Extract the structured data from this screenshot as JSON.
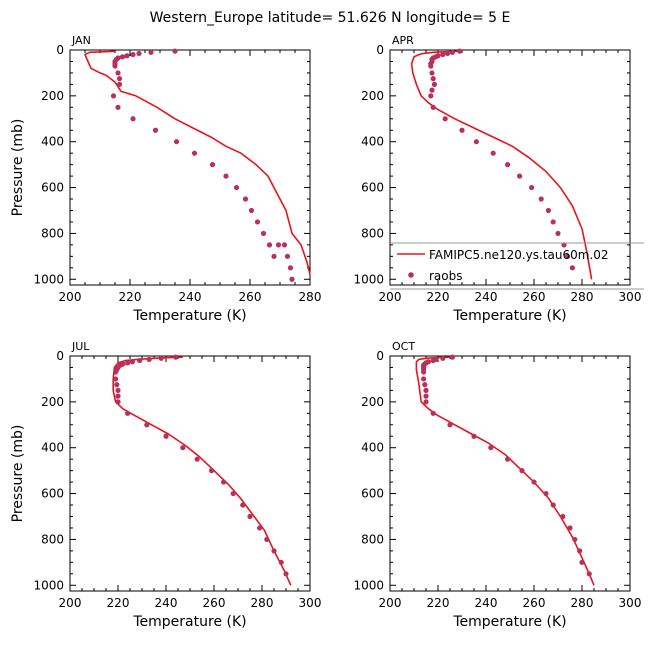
{
  "title": "Western_Europe  latitude= 51.626 N longitude= 5 E",
  "colors": {
    "model": "#e8141b",
    "obs": "#b8315e",
    "axis": "#000000",
    "legend_frame": "#999999"
  },
  "legend": {
    "model_label": "FAMIPC5.ne120.ys.tau60m.02",
    "obs_label": "raobs"
  },
  "chart_data": [
    {
      "type": "line",
      "panel": "JAN",
      "xlabel": "Temperature (K)",
      "ylabel": "Pressure (mb)",
      "xlim": [
        200,
        280
      ],
      "ylim": [
        1025,
        0
      ],
      "xticks": [
        200,
        220,
        240,
        260,
        280
      ],
      "yticks": [
        0,
        200,
        400,
        600,
        800,
        1000
      ],
      "series": [
        {
          "kind": "line",
          "x": [
            215,
            213,
            206.5,
            205,
            206,
            207,
            210,
            212,
            215,
            217,
            222,
            229,
            235,
            241,
            247,
            252,
            257,
            262,
            266,
            268,
            270,
            272,
            274,
            277,
            279,
            280
          ],
          "y": [
            5,
            7,
            10,
            20,
            50,
            80,
            100,
            110,
            140,
            180,
            200,
            250,
            300,
            340,
            380,
            420,
            450,
            500,
            550,
            600,
            650,
            700,
            800,
            850,
            925,
            980
          ]
        },
        {
          "kind": "scatter",
          "x": [
            235,
            227,
            223,
            221,
            219,
            217.5,
            216,
            215.5,
            215,
            215,
            215,
            216,
            216.5,
            216.5,
            214.5,
            216,
            221,
            228.5,
            235.5,
            241.5,
            247.5,
            252,
            255.5,
            258.5,
            260.5,
            262.5,
            264.5,
            266.5,
            268,
            269.5,
            271.5,
            272.5,
            273.5,
            274
          ],
          "y": [
            5,
            10,
            15,
            20,
            25,
            30,
            35,
            40,
            50,
            60,
            70,
            100,
            125,
            150,
            200,
            250,
            300,
            350,
            400,
            450,
            500,
            550,
            600,
            650,
            700,
            750,
            800,
            850,
            900,
            850,
            850,
            900,
            950,
            1000
          ]
        }
      ]
    },
    {
      "type": "line",
      "panel": "APR",
      "xlabel": "Temperature (K)",
      "ylabel": "",
      "xlim": [
        200,
        300
      ],
      "ylim": [
        1025,
        0
      ],
      "xticks": [
        200,
        220,
        240,
        260,
        280,
        300
      ],
      "yticks": [
        0,
        200,
        400,
        600,
        800,
        1000
      ],
      "series": [
        {
          "kind": "line",
          "x": [
            229,
            225,
            218,
            214,
            212,
            210,
            209,
            209.5,
            211,
            213,
            216,
            220,
            227,
            235,
            243,
            251,
            258,
            265,
            271,
            276,
            280,
            282,
            284
          ],
          "y": [
            5,
            7,
            10,
            15,
            20,
            30,
            60,
            100,
            150,
            200,
            230,
            260,
            300,
            340,
            380,
            420,
            470,
            530,
            600,
            680,
            780,
            880,
            1000
          ]
        },
        {
          "kind": "scatter",
          "x": [
            229,
            226,
            224,
            222,
            220,
            219,
            218,
            217.5,
            217.5,
            217,
            217,
            217.5,
            218,
            218.5,
            217.5,
            217,
            218,
            223,
            230,
            236,
            243,
            249,
            254,
            259,
            263,
            266,
            268,
            270,
            272.5,
            274,
            276
          ],
          "y": [
            5,
            10,
            15,
            20,
            25,
            30,
            35,
            40,
            50,
            60,
            70,
            100,
            125,
            150,
            175,
            200,
            250,
            300,
            350,
            400,
            450,
            500,
            550,
            600,
            650,
            700,
            750,
            800,
            850,
            900,
            950
          ]
        }
      ]
    },
    {
      "type": "line",
      "panel": "JUL",
      "xlabel": "Temperature (K)",
      "ylabel": "Pressure (mb)",
      "xlim": [
        200,
        300
      ],
      "ylim": [
        1025,
        0
      ],
      "xticks": [
        200,
        220,
        240,
        260,
        280,
        300
      ],
      "yticks": [
        0,
        200,
        400,
        600,
        800,
        1000
      ],
      "series": [
        {
          "kind": "line",
          "x": [
            247,
            242,
            235,
            228,
            223,
            220,
            218.5,
            218,
            218,
            219,
            222,
            227,
            234,
            241,
            248,
            254,
            260,
            266,
            271,
            276,
            281,
            285,
            289,
            292
          ],
          "y": [
            5,
            7,
            10,
            15,
            20,
            30,
            50,
            100,
            150,
            200,
            230,
            260,
            300,
            340,
            390,
            440,
            500,
            560,
            620,
            690,
            760,
            850,
            930,
            1000
          ]
        },
        {
          "kind": "scatter",
          "x": [
            244,
            238,
            233,
            229,
            226,
            224,
            222,
            221,
            220,
            219.5,
            219,
            219,
            219.5,
            220,
            220,
            220,
            224,
            232,
            240,
            247,
            253,
            259,
            264,
            268,
            272,
            275,
            279,
            282,
            285,
            288,
            290
          ],
          "y": [
            5,
            10,
            15,
            20,
            25,
            30,
            35,
            40,
            50,
            60,
            70,
            100,
            125,
            150,
            175,
            200,
            250,
            300,
            350,
            400,
            450,
            500,
            550,
            600,
            650,
            700,
            750,
            800,
            850,
            900,
            950
          ]
        }
      ]
    },
    {
      "type": "line",
      "panel": "OCT",
      "xlabel": "Temperature (K)",
      "ylabel": "",
      "xlim": [
        200,
        300
      ],
      "ylim": [
        1025,
        0
      ],
      "xticks": [
        200,
        220,
        240,
        260,
        280,
        300
      ],
      "yticks": [
        0,
        200,
        400,
        600,
        800,
        1000
      ],
      "series": [
        {
          "kind": "line",
          "x": [
            225,
            220,
            215,
            212,
            211,
            211,
            212,
            213,
            216,
            220,
            227,
            234,
            241,
            248,
            254,
            260,
            266,
            271,
            276,
            280,
            283,
            285
          ],
          "y": [
            5,
            7,
            10,
            15,
            25,
            60,
            120,
            200,
            230,
            260,
            300,
            340,
            380,
            430,
            490,
            550,
            620,
            700,
            790,
            880,
            950,
            1000
          ]
        },
        {
          "kind": "scatter",
          "x": [
            226,
            222,
            219,
            218,
            216,
            215,
            214.5,
            214,
            214,
            214,
            214,
            214,
            214.5,
            215,
            215,
            215,
            218,
            225,
            235,
            242,
            249,
            255,
            260,
            265,
            268,
            272,
            275,
            277,
            279,
            280,
            283
          ],
          "y": [
            5,
            10,
            15,
            20,
            25,
            30,
            35,
            40,
            50,
            60,
            70,
            100,
            125,
            150,
            175,
            200,
            250,
            300,
            350,
            400,
            450,
            500,
            550,
            600,
            650,
            700,
            750,
            800,
            850,
            900,
            950
          ]
        }
      ]
    }
  ]
}
